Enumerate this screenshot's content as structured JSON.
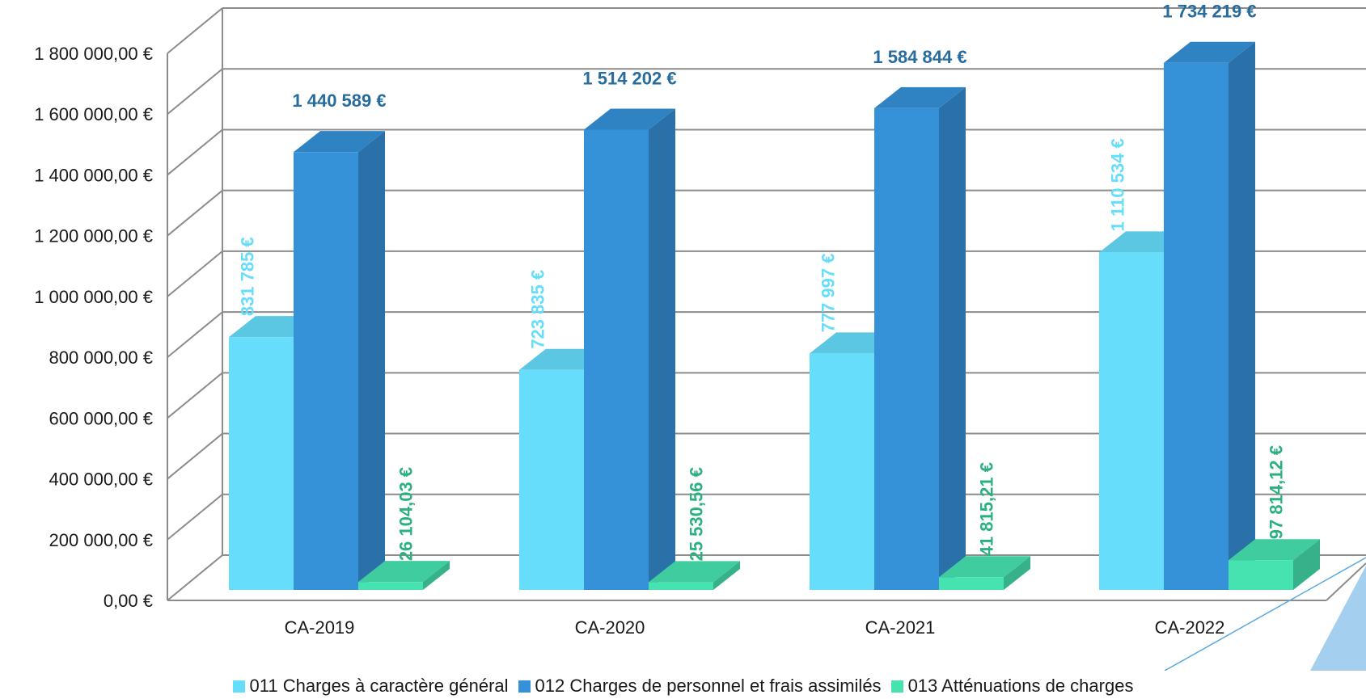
{
  "chart_data": {
    "type": "bar",
    "subtype": "3d-clustered-column",
    "title": "",
    "categories": [
      "CA-2019",
      "CA-2020",
      "CA-2021",
      "CA-2022"
    ],
    "series": [
      {
        "name": "011 Charges à caractère général",
        "color": "#66DDFB",
        "label_color": "#66DDFB",
        "values": [
          831785,
          723835,
          777997,
          1110534
        ],
        "labels": [
          "831 785 €",
          "723 835 €",
          "777 997 €",
          "1 110 534 €"
        ],
        "label_orientation": "vertical"
      },
      {
        "name": "012 Charges de personnel et frais assimilés",
        "color": "#3591D8",
        "label_color": "#276C9F",
        "values": [
          1440589,
          1514202,
          1584844,
          1734219
        ],
        "labels": [
          "1 440 589 €",
          "1 514 202 €",
          "1 584 844 €",
          "1 734 219 €"
        ],
        "label_orientation": "horizontal"
      },
      {
        "name": "013 Atténuations de charges",
        "color": "#46E3B1",
        "label_color": "#2BB07F",
        "values": [
          26104.03,
          25530.56,
          41815.21,
          97814.12
        ],
        "labels": [
          "26 104,03 €",
          "25 530,56 €",
          "41 815,21 €",
          "97 814,12 €"
        ],
        "label_orientation": "vertical"
      }
    ],
    "ylim": [
      0,
      1800000
    ],
    "yticks": [
      0,
      200000,
      400000,
      600000,
      800000,
      1000000,
      1200000,
      1400000,
      1600000,
      1800000
    ],
    "ytick_labels": [
      "0,00 €",
      "200 000,00 €",
      "400 000,00 €",
      "600 000,00 €",
      "800 000,00 €",
      "1 000 000,00 €",
      "1 200 000,00 €",
      "1 400 000,00 €",
      "1 600 000,00 €",
      "1 800 000,00 €"
    ],
    "xlabel": "",
    "ylabel": "",
    "grid": true,
    "legend_position": "bottom"
  }
}
